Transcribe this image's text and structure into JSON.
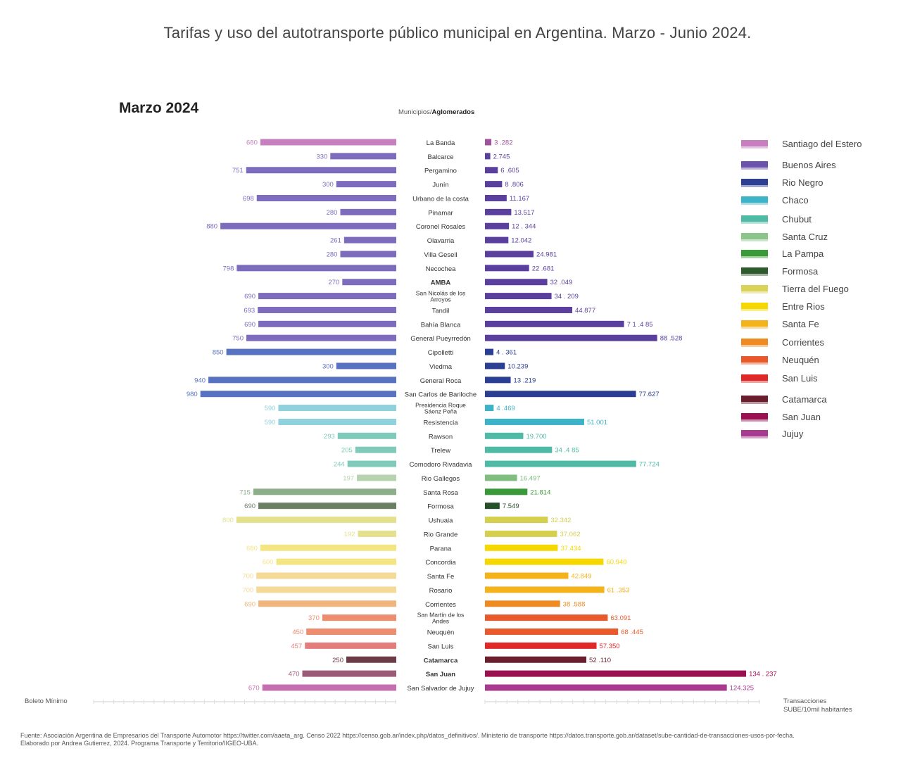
{
  "title": "Tarifas y uso del autotransporte público municipal en Argentina. Marzo - Junio 2024.",
  "panel_title": "Marzo 2024",
  "column_header": {
    "prefix": "Municipios/",
    "bold": "Aglomerados"
  },
  "left_axis_label": "Boleto Mínimo",
  "right_axis_label": {
    "line1": "Transacciones",
    "line2": "SUBE/10mil habitantes"
  },
  "source": {
    "line1": "Fuente: Asociación Argentina de Empresarios del Transporte Automotor https://twitter.com/aaeta_arg. Censo 2022 https://censo.gob.ar/index.php/datos_definitivos/. Ministerio de transporte https://datos.transporte.gob.ar/dataset/sube-cantidad-de-transacciones-usos-por-fecha.",
    "line2": "Elaborado por Andrea Gutierrez, 2024. Programa Transporte y Territorio/IIGEO-UBA."
  },
  "legend": [
    {
      "label": "Santiago del Estero",
      "color": "#c77fbf"
    },
    {
      "label": "Buenos Aires",
      "color": "#6a52ad"
    },
    {
      "label": "Rio Negro",
      "color": "#2d3f93"
    },
    {
      "label": "Chaco",
      "color": "#3cb3c7"
    },
    {
      "label": "Chubut",
      "color": "#4fbaa6"
    },
    {
      "label": "Santa Cruz",
      "color": "#8cc58c"
    },
    {
      "label": "La Pampa",
      "color": "#3a9a3a"
    },
    {
      "label": "Formosa",
      "color": "#2e5a2e"
    },
    {
      "label": "Tierra del Fuego",
      "color": "#d9d35a"
    },
    {
      "label": "Entre Rios",
      "color": "#f5d800"
    },
    {
      "label": "Santa Fe",
      "color": "#f4b21b"
    },
    {
      "label": "Corrientes",
      "color": "#ef8a22"
    },
    {
      "label": "Neuquén",
      "color": "#e85a2b"
    },
    {
      "label": "San Luis",
      "color": "#e02828"
    },
    {
      "label": "Catamarca",
      "color": "#6b1f2e"
    },
    {
      "label": "San Juan",
      "color": "#9a1050"
    },
    {
      "label": "Jujuy",
      "color": "#a83b8f"
    }
  ],
  "chart_data": {
    "type": "bar",
    "orientation": "horizontal-butterfly",
    "left_series": "Boleto Mínimo",
    "right_series": "Transacciones SUBE/10mil habitantes",
    "left_max": 1000,
    "right_max": 140000,
    "rows": [
      {
        "name": "La Banda",
        "bold": false,
        "tarifa": 680,
        "tarifa_label": "680",
        "trans": 3282,
        "trans_label": "3 .282",
        "province": "Santiago del Estero",
        "color": "#c77fbf",
        "bar_color": "#a0529b"
      },
      {
        "name": "Balcarce",
        "bold": false,
        "tarifa": 330,
        "tarifa_label": "330",
        "trans": 2745,
        "trans_label": "2.745",
        "province": "Buenos Aires",
        "color": "#7d6bbd",
        "bar_color": "#5b3f9e"
      },
      {
        "name": "Pergamino",
        "bold": false,
        "tarifa": 751,
        "tarifa_label": "751",
        "trans": 6605,
        "trans_label": "6 .605",
        "province": "Buenos Aires",
        "color": "#7d6bbd",
        "bar_color": "#5b3f9e"
      },
      {
        "name": "Junín",
        "bold": false,
        "tarifa": 300,
        "tarifa_label": "300",
        "trans": 8806,
        "trans_label": "8 .806",
        "province": "Buenos Aires",
        "color": "#7d6bbd",
        "bar_color": "#5b3f9e"
      },
      {
        "name": "Urbano de la costa",
        "bold": false,
        "tarifa": 698,
        "tarifa_label": "698",
        "trans": 11167,
        "trans_label": "11.167",
        "province": "Buenos Aires",
        "color": "#7d6bbd",
        "bar_color": "#5b3f9e"
      },
      {
        "name": "Pinamar",
        "bold": false,
        "tarifa": 280,
        "tarifa_label": "280",
        "trans": 13517,
        "trans_label": "13.517",
        "province": "Buenos Aires",
        "color": "#7d6bbd",
        "bar_color": "#5b3f9e"
      },
      {
        "name": "Coronel Rosales",
        "bold": false,
        "tarifa": 880,
        "tarifa_label": "880",
        "trans": 12344,
        "trans_label": "12 . 344",
        "province": "Buenos Aires",
        "color": "#7d6bbd",
        "bar_color": "#5b3f9e"
      },
      {
        "name": "Olavarria",
        "bold": false,
        "tarifa": 261,
        "tarifa_label": "261",
        "trans": 12042,
        "trans_label": "12.042",
        "province": "Buenos Aires",
        "color": "#7d6bbd",
        "bar_color": "#5b3f9e"
      },
      {
        "name": "Villa Gesell",
        "bold": false,
        "tarifa": 280,
        "tarifa_label": "280",
        "trans": 24981,
        "trans_label": "24.981",
        "province": "Buenos Aires",
        "color": "#7d6bbd",
        "bar_color": "#5b3f9e"
      },
      {
        "name": "Necochea",
        "bold": false,
        "tarifa": 798,
        "tarifa_label": "798",
        "trans": 22681,
        "trans_label": "22 .681",
        "province": "Buenos Aires",
        "color": "#7d6bbd",
        "bar_color": "#5b3f9e"
      },
      {
        "name": "AMBA",
        "bold": true,
        "tarifa": 270,
        "tarifa_label": "270",
        "trans": 32049,
        "trans_label": "32 .049",
        "province": "Buenos Aires",
        "color": "#7d6bbd",
        "bar_color": "#5b3f9e"
      },
      {
        "name": "San Nicolás de los Arroyos",
        "bold": false,
        "tarifa": 690,
        "tarifa_label": "690",
        "trans": 34209,
        "trans_label": "34 . 209",
        "province": "Buenos Aires",
        "color": "#7d6bbd",
        "bar_color": "#5b3f9e"
      },
      {
        "name": "Tandil",
        "bold": false,
        "tarifa": 693,
        "tarifa_label": "693",
        "trans": 44877,
        "trans_label": "44.877",
        "province": "Buenos Aires",
        "color": "#7d6bbd",
        "bar_color": "#5b3f9e"
      },
      {
        "name": "Bahía Blanca",
        "bold": false,
        "tarifa": 690,
        "tarifa_label": "690",
        "trans": 71485,
        "trans_label": "7 1 .4 85",
        "province": "Buenos Aires",
        "color": "#7d6bbd",
        "bar_color": "#5b3f9e"
      },
      {
        "name": "General Pueyrredón",
        "bold": false,
        "tarifa": 750,
        "tarifa_label": "750",
        "trans": 88528,
        "trans_label": "88 .528",
        "province": "Buenos Aires",
        "color": "#7d6bbd",
        "bar_color": "#5b3f9e"
      },
      {
        "name": "Cipolletti",
        "bold": false,
        "tarifa": 850,
        "tarifa_label": "850",
        "trans": 4361,
        "trans_label": "4 . 361",
        "province": "Rio Negro",
        "color": "#5872c2",
        "bar_color": "#2a3f93"
      },
      {
        "name": "Viedma",
        "bold": false,
        "tarifa": 300,
        "tarifa_label": "300",
        "trans": 10239,
        "trans_label": "10.239",
        "province": "Rio Negro",
        "color": "#5872c2",
        "bar_color": "#2a3f93"
      },
      {
        "name": "General Roca",
        "bold": false,
        "tarifa": 940,
        "tarifa_label": "940",
        "trans": 13219,
        "trans_label": "13 .219",
        "province": "Rio Negro",
        "color": "#5872c2",
        "bar_color": "#2a3f93"
      },
      {
        "name": "San Carlos de Bariloche",
        "bold": false,
        "tarifa": 980,
        "tarifa_label": "980",
        "trans": 77627,
        "trans_label": "77.627",
        "province": "Rio Negro",
        "color": "#5872c2",
        "bar_color": "#2a3f93"
      },
      {
        "name": "Presidencia Roque Sáenz Peña",
        "bold": false,
        "tarifa": 590,
        "tarifa_label": "590",
        "trans": 4469,
        "trans_label": "4 .469",
        "province": "Chaco",
        "color": "#8fd1dc",
        "bar_color": "#3cb3c7"
      },
      {
        "name": "Resistencia",
        "bold": false,
        "tarifa": 590,
        "tarifa_label": "590",
        "trans": 51001,
        "trans_label": "51.001",
        "province": "Chaco",
        "color": "#8fd1dc",
        "bar_color": "#3cb3c7"
      },
      {
        "name": "Rawson",
        "bold": false,
        "tarifa": 293,
        "tarifa_label": "293",
        "trans": 19700,
        "trans_label": "19.700",
        "province": "Chubut",
        "color": "#7fcabb",
        "bar_color": "#4fbaa6"
      },
      {
        "name": "Trelew",
        "bold": false,
        "tarifa": 205,
        "tarifa_label": "205",
        "trans": 34485,
        "trans_label": "34 .4 85",
        "province": "Chubut",
        "color": "#7fcabb",
        "bar_color": "#4fbaa6"
      },
      {
        "name": "Comodoro Rivadavia",
        "bold": false,
        "tarifa": 244,
        "tarifa_label": "244",
        "trans": 77724,
        "trans_label": "77.724",
        "province": "Chubut",
        "color": "#7fcabb",
        "bar_color": "#4fbaa6"
      },
      {
        "name": "Rio Gallegos",
        "bold": false,
        "tarifa": 197,
        "tarifa_label": "197",
        "trans": 16497,
        "trans_label": "16.497",
        "province": "Santa Cruz",
        "color": "#b6d3b0",
        "bar_color": "#7fbe7f"
      },
      {
        "name": "Santa Rosa",
        "bold": false,
        "tarifa": 715,
        "tarifa_label": "715",
        "trans": 21814,
        "trans_label": "21.814",
        "province": "La Pampa",
        "color": "#8cae88",
        "bar_color": "#3a9a3a"
      },
      {
        "name": "Formosa",
        "bold": false,
        "tarifa": 690,
        "tarifa_label": "690",
        "trans": 7549,
        "trans_label": "7.549",
        "province": "Formosa",
        "color": "#6a7f64",
        "bar_color": "#25502a"
      },
      {
        "name": "Ushuaia",
        "bold": false,
        "tarifa": 800,
        "tarifa_label": "800",
        "trans": 32342,
        "trans_label": "32.342",
        "province": "Tierra del Fuego",
        "color": "#e4e08e",
        "bar_color": "#d5cf4e"
      },
      {
        "name": "Rio Grande",
        "bold": false,
        "tarifa": 192,
        "tarifa_label": "192",
        "trans": 37062,
        "trans_label": "37.062",
        "province": "Tierra del Fuego",
        "color": "#e4e08e",
        "bar_color": "#d5cf4e"
      },
      {
        "name": "Parana",
        "bold": false,
        "tarifa": 680,
        "tarifa_label": "680",
        "trans": 37434,
        "trans_label": "37.434",
        "province": "Entre Rios",
        "color": "#f4e583",
        "bar_color": "#f5d800"
      },
      {
        "name": "Concordia",
        "bold": false,
        "tarifa": 600,
        "tarifa_label": "600",
        "trans": 60940,
        "trans_label": "60.940",
        "province": "Entre Rios",
        "color": "#f4e583",
        "bar_color": "#f5d800"
      },
      {
        "name": "Santa Fe",
        "bold": false,
        "tarifa": 700,
        "tarifa_label": "700",
        "trans": 42849,
        "trans_label": "42.849",
        "province": "Santa Fe",
        "color": "#f5d996",
        "bar_color": "#f4b21b"
      },
      {
        "name": "Rosario",
        "bold": false,
        "tarifa": 700,
        "tarifa_label": "700",
        "trans": 61353,
        "trans_label": "61 .353",
        "province": "Santa Fe",
        "color": "#f5d996",
        "bar_color": "#f4b21b"
      },
      {
        "name": "Corrientes",
        "bold": false,
        "tarifa": 690,
        "tarifa_label": "690",
        "trans": 38588,
        "trans_label": "38 .588",
        "province": "Corrientes",
        "color": "#f0b57a",
        "bar_color": "#ef8a22"
      },
      {
        "name": "San Martín de los Andes",
        "bold": false,
        "tarifa": 370,
        "tarifa_label": "370",
        "trans": 63091,
        "trans_label": "63.091",
        "province": "Neuquén",
        "color": "#ee8c6e",
        "bar_color": "#e85a2b"
      },
      {
        "name": "Neuquén",
        "bold": false,
        "tarifa": 450,
        "tarifa_label": "450",
        "trans": 68445,
        "trans_label": "68 .445",
        "province": "Neuquén",
        "color": "#ee8c6e",
        "bar_color": "#e85a2b"
      },
      {
        "name": "San Luis",
        "bold": false,
        "tarifa": 457,
        "tarifa_label": "457",
        "trans": 57350,
        "trans_label": "57.350",
        "province": "San Luis",
        "color": "#e47c7c",
        "bar_color": "#e02828"
      },
      {
        "name": "Catamarca",
        "bold": true,
        "tarifa": 250,
        "tarifa_label": "250",
        "trans": 52110,
        "trans_label": "52 .110",
        "province": "Catamarca",
        "color": "#6b3c48",
        "bar_color": "#6b1f2e"
      },
      {
        "name": "San Juan",
        "bold": true,
        "tarifa": 470,
        "tarifa_label": "470",
        "trans": 134237,
        "trans_label": "134 . 237",
        "province": "San Juan",
        "color": "#9b5a78",
        "bar_color": "#9a1050"
      },
      {
        "name": "San Salvador de Jujuy",
        "bold": false,
        "tarifa": 670,
        "tarifa_label": "670",
        "trans": 124325,
        "trans_label": "124.325",
        "province": "Jujuy",
        "color": "#c66fb0",
        "bar_color": "#a83b8f"
      }
    ]
  }
}
